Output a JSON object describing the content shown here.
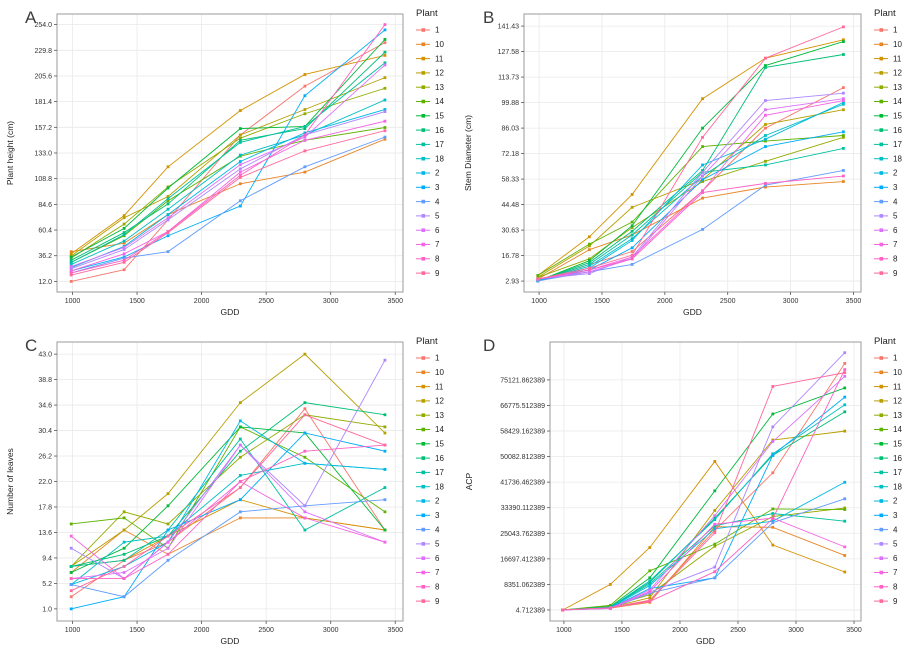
{
  "legend_title": "Plant",
  "palette": {
    "1": "#F8766D",
    "10": "#E88526",
    "11": "#D39200",
    "12": "#B79F00",
    "13": "#93AA00",
    "14": "#5EB300",
    "15": "#00BA38",
    "16": "#00BF74",
    "17": "#00C19F",
    "18": "#00BFC4",
    "2": "#00B9E3",
    "3": "#00ADFA",
    "4": "#619CFF",
    "5": "#AE87FF",
    "6": "#DB72FB",
    "7": "#F564E3",
    "8": "#FF61C3",
    "9": "#FF699C"
  },
  "chart_data": [
    {
      "type": "line",
      "letter": "A",
      "xlabel": "GDD",
      "ylabel": "Plant height (cm)",
      "xticks": [
        "1000",
        "1500",
        "2000",
        "2500",
        "3000",
        "3500"
      ],
      "yticks": [
        "12.0",
        "36.2",
        "60.4",
        "84.6",
        "108.8",
        "133.0",
        "157.2",
        "181.4",
        "205.6",
        "229.8",
        "254.0"
      ],
      "xlim": [
        880,
        3560
      ],
      "ylim": [
        2,
        264
      ],
      "grid": true,
      "legend_position": "right",
      "x": [
        990,
        1400,
        1740,
        2300,
        2800,
        3420
      ],
      "series": [
        {
          "name": "1",
          "values": [
            12,
            23,
            70,
            150,
            196,
            237
          ]
        },
        {
          "name": "10",
          "values": [
            40,
            48,
            75,
            104,
            115,
            146
          ]
        },
        {
          "name": "11",
          "values": [
            38,
            74,
            120,
            173,
            207,
            225
          ]
        },
        {
          "name": "12",
          "values": [
            36,
            72,
            92,
            150,
            174,
            204
          ]
        },
        {
          "name": "13",
          "values": [
            34,
            66,
            101,
            147,
            170,
            194
          ]
        },
        {
          "name": "14",
          "values": [
            30,
            55,
            88,
            130,
            145,
            157
          ]
        },
        {
          "name": "15",
          "values": [
            35,
            62,
            100,
            156,
            158,
            240
          ]
        },
        {
          "name": "16",
          "values": [
            32,
            58,
            85,
            145,
            156,
            228
          ]
        },
        {
          "name": "17",
          "values": [
            30,
            56,
            90,
            143,
            158,
            218
          ]
        },
        {
          "name": "18",
          "values": [
            28,
            50,
            80,
            131,
            150,
            183
          ]
        },
        {
          "name": "2",
          "values": [
            25,
            45,
            75,
            125,
            152,
            174
          ]
        },
        {
          "name": "3",
          "values": [
            22,
            35,
            55,
            83,
            187,
            249
          ]
        },
        {
          "name": "4",
          "values": [
            20,
            34,
            40,
            88,
            120,
            148
          ]
        },
        {
          "name": "5",
          "values": [
            24,
            42,
            70,
            118,
            150,
            172
          ]
        },
        {
          "name": "6",
          "values": [
            26,
            44,
            72,
            122,
            148,
            216
          ]
        },
        {
          "name": "7",
          "values": [
            22,
            38,
            59,
            115,
            145,
            163
          ]
        },
        {
          "name": "8",
          "values": [
            20,
            32,
            59,
            112,
            150,
            254
          ]
        },
        {
          "name": "9",
          "values": [
            18,
            30,
            58,
            110,
            135,
            154
          ]
        }
      ]
    },
    {
      "type": "line",
      "letter": "B",
      "xlabel": "GDD",
      "ylabel": "Stem Diameter (cm)",
      "xticks": [
        "1000",
        "1500",
        "2000",
        "2500",
        "3000",
        "3500"
      ],
      "yticks": [
        "2.93",
        "16.78",
        "30.63",
        "44.48",
        "58.33",
        "72.18",
        "86.03",
        "99.88",
        "113.73",
        "127.58",
        "141.43"
      ],
      "xlim": [
        880,
        3560
      ],
      "ylim": [
        -3,
        148
      ],
      "grid": true,
      "legend_position": "right",
      "x": [
        990,
        1400,
        1740,
        2300,
        2800,
        3420
      ],
      "series": [
        {
          "name": "1",
          "values": [
            3,
            12,
            19,
            52,
            86,
            108
          ]
        },
        {
          "name": "10",
          "values": [
            4,
            20,
            28,
            48,
            54,
            57
          ]
        },
        {
          "name": "11",
          "values": [
            6,
            27,
            50,
            102,
            124,
            134
          ]
        },
        {
          "name": "12",
          "values": [
            5,
            22,
            43,
            58,
            88,
            96
          ]
        },
        {
          "name": "13",
          "values": [
            5,
            15,
            32,
            57,
            68,
            81
          ]
        },
        {
          "name": "14",
          "values": [
            6,
            23,
            35,
            76,
            79,
            82
          ]
        },
        {
          "name": "15",
          "values": [
            3,
            14,
            33,
            86,
            120,
            133
          ]
        },
        {
          "name": "16",
          "values": [
            3,
            13,
            30,
            63,
            119,
            126
          ]
        },
        {
          "name": "17",
          "values": [
            3,
            12,
            28,
            62,
            66,
            75
          ]
        },
        {
          "name": "18",
          "values": [
            3,
            11,
            26,
            60,
            82,
            99
          ]
        },
        {
          "name": "2",
          "values": [
            3,
            10,
            25,
            66,
            80,
            100
          ]
        },
        {
          "name": "3",
          "values": [
            3,
            9,
            21,
            58,
            76,
            84
          ]
        },
        {
          "name": "4",
          "values": [
            3,
            8,
            12,
            31,
            55,
            63
          ]
        },
        {
          "name": "5",
          "values": [
            4,
            7,
            16,
            62,
            101,
            105
          ]
        },
        {
          "name": "6",
          "values": [
            4,
            8,
            15,
            60,
            96,
            102
          ]
        },
        {
          "name": "7",
          "values": [
            4,
            9,
            16,
            52,
            93,
            101
          ]
        },
        {
          "name": "8",
          "values": [
            4,
            9,
            15,
            51,
            56,
            60
          ]
        },
        {
          "name": "9",
          "values": [
            4,
            10,
            17,
            81,
            124,
            141
          ]
        }
      ]
    },
    {
      "type": "line",
      "letter": "C",
      "xlabel": "GDD",
      "ylabel": "Number of leaves",
      "xticks": [
        "1000",
        "1500",
        "2000",
        "2500",
        "3000",
        "3500"
      ],
      "yticks": [
        "1.0",
        "5.2",
        "9.4",
        "13.6",
        "17.8",
        "22.0",
        "26.2",
        "30.4",
        "34.6",
        "38.8",
        "43.0"
      ],
      "xlim": [
        880,
        3560
      ],
      "ylim": [
        -1,
        45
      ],
      "grid": true,
      "legend_position": "right",
      "x": [
        990,
        1400,
        1740,
        2300,
        2800,
        3420
      ],
      "series": [
        {
          "name": "1",
          "values": [
            3,
            9,
            12,
            21,
            34,
            14
          ]
        },
        {
          "name": "10",
          "values": [
            7,
            14,
            10,
            16,
            16,
            14
          ]
        },
        {
          "name": "11",
          "values": [
            8,
            9,
            13,
            19,
            16,
            14
          ]
        },
        {
          "name": "12",
          "values": [
            8,
            14,
            20,
            35,
            43,
            30
          ]
        },
        {
          "name": "13",
          "values": [
            8,
            17,
            15,
            26,
            33,
            31
          ]
        },
        {
          "name": "14",
          "values": [
            15,
            16,
            11,
            31,
            26,
            17
          ]
        },
        {
          "name": "15",
          "values": [
            7,
            11,
            18,
            31,
            30,
            14
          ]
        },
        {
          "name": "16",
          "values": [
            8,
            10,
            13,
            27,
            35,
            33
          ]
        },
        {
          "name": "17",
          "values": [
            8,
            9,
            14,
            29,
            14,
            21
          ]
        },
        {
          "name": "18",
          "values": [
            5,
            12,
            13,
            23,
            25,
            24
          ]
        },
        {
          "name": "2",
          "values": [
            5,
            8,
            12,
            32,
            25,
            24
          ]
        },
        {
          "name": "3",
          "values": [
            1,
            3,
            14,
            19,
            30,
            27
          ]
        },
        {
          "name": "4",
          "values": [
            5,
            3,
            9,
            17,
            18,
            19
          ]
        },
        {
          "name": "5",
          "values": [
            11,
            6,
            12,
            28,
            18,
            42
          ]
        },
        {
          "name": "6",
          "values": [
            6,
            7,
            11,
            28,
            17,
            12
          ]
        },
        {
          "name": "7",
          "values": [
            13,
            6,
            12,
            22,
            16,
            12
          ]
        },
        {
          "name": "8",
          "values": [
            6,
            6,
            10,
            22,
            27,
            28
          ]
        },
        {
          "name": "9",
          "values": [
            4,
            8,
            13,
            21,
            33,
            28
          ]
        }
      ]
    },
    {
      "type": "line",
      "letter": "D",
      "xlabel": "GDD",
      "ylabel": "ACP",
      "xticks": [
        "1000",
        "1500",
        "2000",
        "2500",
        "3000",
        "3500"
      ],
      "yticks": [
        "4.712389",
        "8351.062389",
        "16697.412389",
        "25043.762389",
        "33390.112389",
        "41736.462389",
        "50082.812389",
        "58429.162389",
        "66775.512389",
        "75121.862389"
      ],
      "xlim": [
        880,
        3560
      ],
      "ylim": [
        -3600,
        87500
      ],
      "grid": true,
      "legend_position": "right",
      "x": [
        990,
        1400,
        1740,
        2300,
        2800,
        3420
      ],
      "series": [
        {
          "name": "1",
          "values": [
            4.712389,
            800,
            3200,
            26000,
            44800,
            80500
          ]
        },
        {
          "name": "10",
          "values": [
            4.712389,
            600,
            2500,
            27200,
            27000,
            17800
          ]
        },
        {
          "name": "11",
          "values": [
            4.712389,
            8351,
            20400,
            48500,
            21200,
            12400
          ]
        },
        {
          "name": "12",
          "values": [
            4.712389,
            900,
            4000,
            32500,
            55500,
            58400
          ]
        },
        {
          "name": "13",
          "values": [
            4.712389,
            1200,
            5000,
            20800,
            30500,
            33300
          ]
        },
        {
          "name": "14",
          "values": [
            4.712389,
            1500,
            12800,
            21500,
            33000,
            32800
          ]
        },
        {
          "name": "15",
          "values": [
            4.712389,
            1100,
            10500,
            38900,
            64000,
            72500
          ]
        },
        {
          "name": "16",
          "values": [
            4.712389,
            1000,
            9000,
            30000,
            50500,
            64700
          ]
        },
        {
          "name": "17",
          "values": [
            4.712389,
            900,
            8500,
            27500,
            31500,
            29000
          ]
        },
        {
          "name": "18",
          "values": [
            4.712389,
            850,
            9500,
            29500,
            51000,
            67000
          ]
        },
        {
          "name": "2",
          "values": [
            4.712389,
            700,
            8000,
            26500,
            29000,
            41700
          ]
        },
        {
          "name": "3",
          "values": [
            4.712389,
            650,
            7000,
            10500,
            50500,
            69500
          ]
        },
        {
          "name": "4",
          "values": [
            4.712389,
            500,
            5500,
            10500,
            28500,
            36300
          ]
        },
        {
          "name": "5",
          "values": [
            4.712389,
            450,
            5800,
            14000,
            59800,
            84000
          ]
        },
        {
          "name": "6",
          "values": [
            4.712389,
            550,
            6500,
            30800,
            55000,
            76300
          ]
        },
        {
          "name": "7",
          "values": [
            4.712389,
            600,
            6000,
            28000,
            30000,
            20600
          ]
        },
        {
          "name": "8",
          "values": [
            4.712389,
            700,
            2800,
            12500,
            29800,
            78500
          ]
        },
        {
          "name": "9",
          "values": [
            4.712389,
            750,
            3000,
            25200,
            73000,
            77500
          ]
        }
      ]
    }
  ]
}
